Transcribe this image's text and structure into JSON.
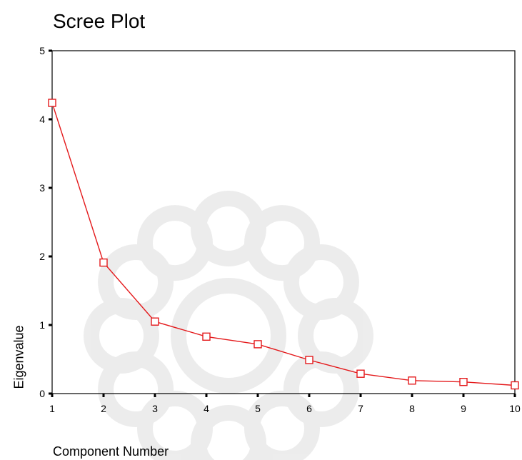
{
  "chart_data": {
    "type": "line",
    "title": "Scree Plot",
    "xlabel": "Component Number",
    "ylabel": "Eigenvalue",
    "x": [
      1,
      2,
      3,
      4,
      5,
      6,
      7,
      8,
      9,
      10
    ],
    "series": [
      {
        "values": [
          4.24,
          1.91,
          1.05,
          0.83,
          0.72,
          0.49,
          0.29,
          0.19,
          0.17,
          0.12
        ],
        "color": "#e41a1c",
        "marker": "square"
      }
    ],
    "xlim": [
      1,
      10
    ],
    "ylim": [
      0,
      5
    ],
    "xticks": [
      "1",
      "2",
      "3",
      "4",
      "5",
      "6",
      "7",
      "8",
      "9",
      "10"
    ],
    "yticks": [
      "0",
      "1",
      "2",
      "3",
      "4",
      "5"
    ],
    "grid": false,
    "legend": "none"
  }
}
